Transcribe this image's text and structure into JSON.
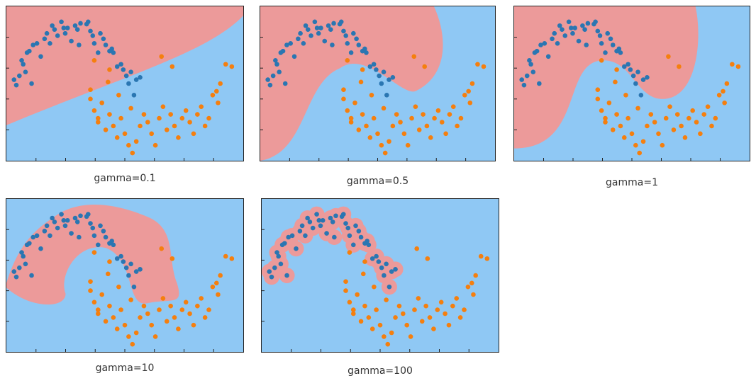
{
  "colors": {
    "region_class0": "#8fc8f4",
    "region_class1": "#ec9a9a",
    "point_class0": "#f57f0e",
    "point_class1": "#2a76b2"
  },
  "chart_data": [
    {
      "type": "scatter",
      "title": "gamma=0.1",
      "boundary": "gamma-0.1"
    },
    {
      "type": "scatter",
      "title": "gamma=0.5",
      "boundary": "gamma-0.5"
    },
    {
      "type": "scatter",
      "title": "gamma=1",
      "boundary": "gamma-1"
    },
    {
      "type": "scatter",
      "title": "gamma=10",
      "boundary": "gamma-10"
    },
    {
      "type": "scatter",
      "title": "gamma=100",
      "boundary": "gamma-100"
    }
  ],
  "series": {
    "blue": [
      [
        -0.95,
        0.25
      ],
      [
        -0.92,
        0.18
      ],
      [
        -0.88,
        0.3
      ],
      [
        -0.85,
        0.5
      ],
      [
        -0.83,
        0.45
      ],
      [
        -0.8,
        0.35
      ],
      [
        -0.78,
        0.6
      ],
      [
        -0.75,
        0.62
      ],
      [
        -0.72,
        0.2
      ],
      [
        -0.7,
        0.7
      ],
      [
        -0.65,
        0.72
      ],
      [
        -0.55,
        0.78
      ],
      [
        -0.52,
        0.85
      ],
      [
        -0.48,
        0.72
      ],
      [
        -0.45,
        0.95
      ],
      [
        -0.42,
        0.9
      ],
      [
        -0.38,
        0.82
      ],
      [
        -0.33,
        1.0
      ],
      [
        -0.3,
        0.92
      ],
      [
        -0.28,
        0.85
      ],
      [
        -0.25,
        0.92
      ],
      [
        -0.2,
        0.75
      ],
      [
        -0.15,
        0.95
      ],
      [
        -0.12,
        0.9
      ],
      [
        -0.08,
        0.98
      ],
      [
        0.0,
        0.97
      ],
      [
        0.02,
        1.0
      ],
      [
        0.05,
        0.88
      ],
      [
        0.1,
        0.72
      ],
      [
        0.15,
        0.6
      ],
      [
        0.18,
        0.85
      ],
      [
        0.22,
        0.78
      ],
      [
        0.25,
        0.7
      ],
      [
        0.3,
        0.62
      ],
      [
        0.35,
        0.6
      ],
      [
        0.4,
        0.42
      ],
      [
        0.45,
        0.45
      ],
      [
        0.48,
        0.38
      ],
      [
        0.52,
        0.3
      ],
      [
        0.55,
        0.2
      ],
      [
        0.58,
        0.35
      ],
      [
        0.62,
        0.05
      ],
      [
        0.65,
        0.25
      ],
      [
        0.7,
        0.28
      ],
      [
        0.33,
        0.65
      ],
      [
        -0.6,
        0.55
      ],
      [
        -0.1,
        0.7
      ],
      [
        0.08,
        0.82
      ]
    ],
    "orange": [
      [
        0.05,
        0.0
      ],
      [
        0.1,
        -0.15
      ],
      [
        0.15,
        -0.3
      ],
      [
        0.2,
        -0.05
      ],
      [
        0.25,
        -0.4
      ],
      [
        0.3,
        -0.2
      ],
      [
        0.35,
        -0.35
      ],
      [
        0.4,
        -0.5
      ],
      [
        0.45,
        -0.25
      ],
      [
        0.5,
        -0.45
      ],
      [
        0.55,
        -0.6
      ],
      [
        0.6,
        -0.7
      ],
      [
        0.65,
        -0.55
      ],
      [
        0.7,
        -0.35
      ],
      [
        0.75,
        -0.2
      ],
      [
        0.8,
        -0.3
      ],
      [
        0.85,
        -0.45
      ],
      [
        0.9,
        -0.6
      ],
      [
        0.95,
        -0.25
      ],
      [
        1.0,
        -0.1
      ],
      [
        1.05,
        -0.4
      ],
      [
        1.1,
        -0.2
      ],
      [
        1.15,
        -0.35
      ],
      [
        1.2,
        -0.5
      ],
      [
        1.25,
        -0.25
      ],
      [
        1.3,
        -0.15
      ],
      [
        1.35,
        -0.3
      ],
      [
        1.4,
        -0.45
      ],
      [
        1.45,
        -0.2
      ],
      [
        1.5,
        -0.1
      ],
      [
        1.55,
        -0.35
      ],
      [
        1.6,
        -0.25
      ],
      [
        1.65,
        0.05
      ],
      [
        1.7,
        0.1
      ],
      [
        1.72,
        -0.05
      ],
      [
        1.75,
        0.2
      ],
      [
        1.82,
        0.45
      ],
      [
        1.9,
        0.42
      ],
      [
        0.3,
        0.38
      ],
      [
        0.28,
        0.22
      ],
      [
        0.1,
        0.5
      ],
      [
        0.15,
        -0.25
      ],
      [
        0.98,
        0.55
      ],
      [
        1.12,
        0.42
      ],
      [
        0.42,
        0.05
      ],
      [
        0.05,
        0.12
      ],
      [
        0.58,
        -0.12
      ]
    ]
  }
}
